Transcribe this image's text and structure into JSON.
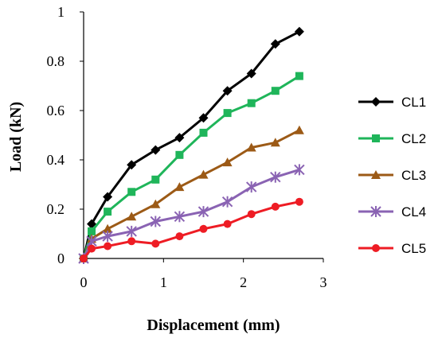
{
  "chart_data": {
    "type": "line",
    "xlabel": "Displacement (mm)",
    "ylabel": "Load (kN)",
    "xlim": [
      0,
      3
    ],
    "ylim": [
      0,
      1
    ],
    "xticks": [
      0,
      1,
      2,
      3
    ],
    "yticks": [
      0,
      0.2,
      0.4,
      0.6,
      0.8,
      1
    ],
    "ytick_labels": [
      "0",
      "0.2",
      "0.4",
      "0.6",
      "0.8",
      "1"
    ],
    "grid": false,
    "legend_position": "right",
    "series": [
      {
        "name": "CL1",
        "color": "#000000",
        "marker": "diamond",
        "x": [
          0,
          0.1,
          0.3,
          0.6,
          0.9,
          1.2,
          1.5,
          1.8,
          2.1,
          2.4,
          2.7
        ],
        "y": [
          0,
          0.14,
          0.25,
          0.38,
          0.44,
          0.49,
          0.57,
          0.68,
          0.75,
          0.87,
          0.92
        ]
      },
      {
        "name": "CL2",
        "color": "#1fb55a",
        "marker": "square",
        "x": [
          0,
          0.1,
          0.3,
          0.6,
          0.9,
          1.2,
          1.5,
          1.8,
          2.1,
          2.4,
          2.7
        ],
        "y": [
          0,
          0.11,
          0.19,
          0.27,
          0.32,
          0.42,
          0.51,
          0.59,
          0.63,
          0.68,
          0.74
        ]
      },
      {
        "name": "CL3",
        "color": "#9c5a16",
        "marker": "triangle",
        "x": [
          0,
          0.1,
          0.3,
          0.6,
          0.9,
          1.2,
          1.5,
          1.8,
          2.1,
          2.4,
          2.7
        ],
        "y": [
          0,
          0.08,
          0.12,
          0.17,
          0.22,
          0.29,
          0.34,
          0.39,
          0.45,
          0.47,
          0.52
        ]
      },
      {
        "name": "CL4",
        "color": "#8a63b3",
        "marker": "star",
        "x": [
          0,
          0.1,
          0.3,
          0.6,
          0.9,
          1.2,
          1.5,
          1.8,
          2.1,
          2.4,
          2.7
        ],
        "y": [
          0,
          0.07,
          0.09,
          0.11,
          0.15,
          0.17,
          0.19,
          0.23,
          0.29,
          0.33,
          0.36
        ]
      },
      {
        "name": "CL5",
        "color": "#ee1c24",
        "marker": "circle",
        "x": [
          0,
          0.1,
          0.3,
          0.6,
          0.9,
          1.2,
          1.5,
          1.8,
          2.1,
          2.4,
          2.7
        ],
        "y": [
          0,
          0.04,
          0.05,
          0.07,
          0.06,
          0.09,
          0.12,
          0.14,
          0.18,
          0.21,
          0.23
        ]
      }
    ]
  }
}
